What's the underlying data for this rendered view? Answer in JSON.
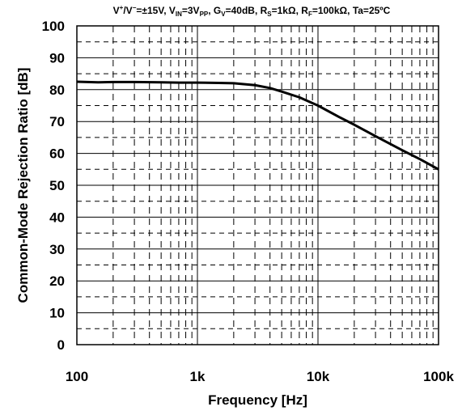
{
  "chart_data": {
    "type": "line",
    "title_parts": [
      {
        "text": "V"
      },
      {
        "text": "+",
        "sup": true
      },
      {
        "text": "/V"
      },
      {
        "text": "−",
        "sup": true
      },
      {
        "text": "=±15V, V"
      },
      {
        "text": "IN",
        "sub": true
      },
      {
        "text": "=3V"
      },
      {
        "text": "PP",
        "sub": true
      },
      {
        "text": ", G"
      },
      {
        "text": "V",
        "sub": true
      },
      {
        "text": "=40dB, R"
      },
      {
        "text": "S",
        "sub": true
      },
      {
        "text": "=1kΩ, R"
      },
      {
        "text": "F",
        "sub": true
      },
      {
        "text": "=100kΩ, Ta=25ºC"
      }
    ],
    "xlabel": "Frequency [Hz]",
    "ylabel": "Common-Mode Rejection Ratio [dB]",
    "x_scale": "log",
    "xlim": [
      100,
      100000
    ],
    "ylim": [
      0,
      100
    ],
    "x_ticks": [
      100,
      1000,
      10000,
      100000
    ],
    "x_tick_labels": [
      "100",
      "1k",
      "10k",
      "100k"
    ],
    "y_ticks": [
      0,
      10,
      20,
      30,
      40,
      50,
      60,
      70,
      80,
      90,
      100
    ],
    "y_tick_labels": [
      "0",
      "10",
      "20",
      "30",
      "40",
      "50",
      "60",
      "70",
      "80",
      "90",
      "100"
    ],
    "grid": true,
    "series": [
      {
        "color": "#000000",
        "x": [
          100,
          150,
          200,
          300,
          500,
          700,
          1000,
          1500,
          2000,
          3000,
          4000,
          5000,
          7000,
          10000,
          15000,
          20000,
          30000,
          50000,
          70000,
          100000
        ],
        "y": [
          82.5,
          82.3,
          82.4,
          82.4,
          82.3,
          82.2,
          82.2,
          82.1,
          82.0,
          81.4,
          80.5,
          79.4,
          77.6,
          75.0,
          71.4,
          69.0,
          65.4,
          61.0,
          58.2,
          55.0
        ]
      }
    ]
  }
}
